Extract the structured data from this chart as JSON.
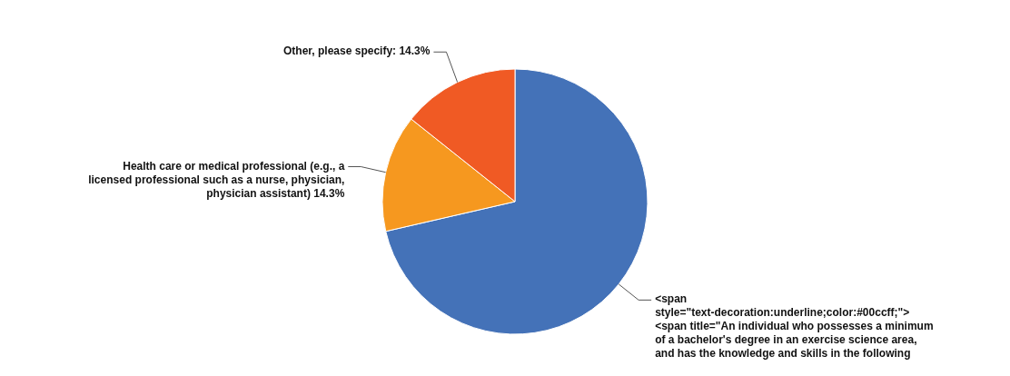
{
  "chart_data": {
    "type": "pie",
    "categories": [
      "<span style=\"text-decoration:underline;color:#00ccff;\"> <span title=\"An individual who possesses a minimum of a bachelor's degree in an exercise science area, and has the knowledge and skills in the following",
      "Health care or medical professional (e.g., a licensed professional such as a nurse, physician, physician assistant)",
      "Other, please specify"
    ],
    "values": [
      71.4,
      14.3,
      14.3
    ],
    "value_labels": [
      null,
      "14.3%",
      "14.3%"
    ],
    "colors": [
      "#4472b8",
      "#f6981f",
      "#f05a24"
    ]
  }
}
